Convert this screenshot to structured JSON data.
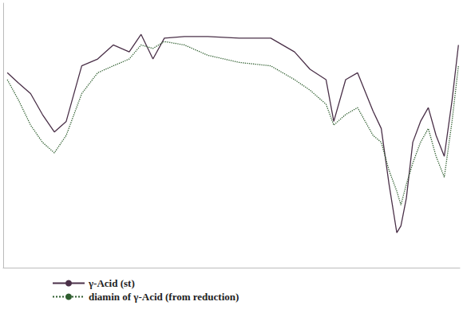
{
  "chart_data": {
    "type": "line",
    "x": [
      0.9,
      3.4,
      6.0,
      8.6,
      11.2,
      13.8,
      17.2,
      20.7,
      24.1,
      27.6,
      30.2,
      32.8,
      35.3,
      39.7,
      44.8,
      51.7,
      58.6,
      63.8,
      67.2,
      70.7,
      72.4,
      75.0,
      77.6,
      81.0,
      82.8,
      84.5,
      86.2,
      87.1,
      88.3,
      89.7,
      91.4,
      93.1,
      94.8,
      96.6,
      98.3,
      99.7
    ],
    "series": [
      {
        "name": "γ-Acid (st)",
        "color": "#4a3048",
        "line_style": "solid",
        "values": [
          73.7,
          69.7,
          65.8,
          57.9,
          51.3,
          55.3,
          76.3,
          78.9,
          84.2,
          81.6,
          88.2,
          78.9,
          86.8,
          87.4,
          87.4,
          86.8,
          86.8,
          81.6,
          75.0,
          71.1,
          55.3,
          71.1,
          73.7,
          59.2,
          52.6,
          31.6,
          13.2,
          15.8,
          26.3,
          47.4,
          55.3,
          60.5,
          50.0,
          42.1,
          63.2,
          84.2
        ]
      },
      {
        "name": "diamin of γ-Acid (from reduction)",
        "color": "#2f5e2f",
        "line_style": "dotted",
        "values": [
          71.1,
          63.2,
          53.9,
          47.4,
          43.4,
          50.0,
          65.8,
          73.7,
          76.3,
          78.9,
          84.2,
          82.9,
          85.5,
          84.2,
          80.3,
          77.6,
          76.3,
          71.1,
          67.1,
          61.8,
          53.9,
          57.9,
          60.5,
          50.0,
          47.4,
          36.8,
          28.9,
          23.7,
          31.6,
          39.5,
          47.4,
          52.6,
          42.1,
          34.2,
          55.3,
          76.3
        ]
      }
    ],
    "xlim": [
      0,
      100
    ],
    "ylim": [
      0,
      100
    ],
    "tick_labels": false,
    "grid": false,
    "legend": "bottom",
    "marker": "none"
  }
}
